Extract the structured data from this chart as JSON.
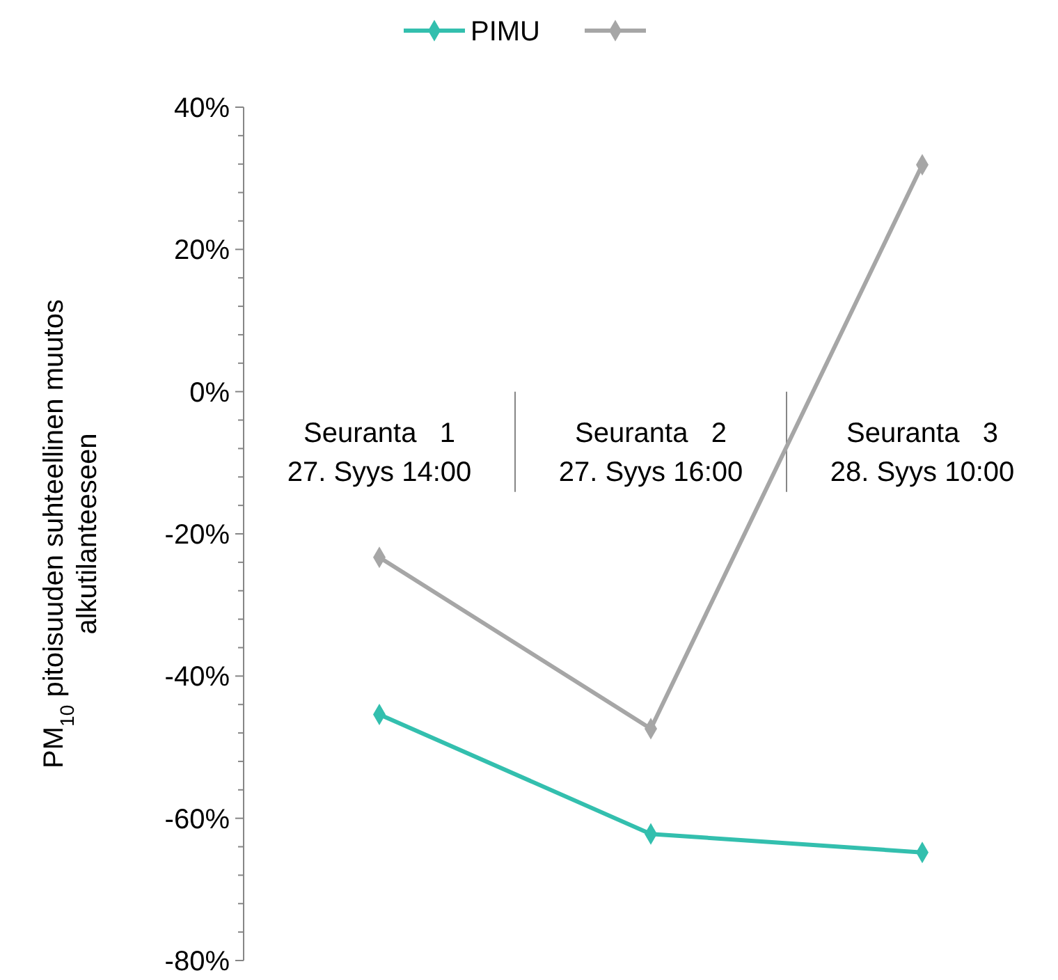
{
  "chart_data": {
    "type": "line",
    "ylabel": "PM$_{10}$ pitoisuuden suhteellinen muutos\nalkutilanteeseen",
    "categories": [
      "Seuranta   1\n27. Syys 14:00",
      "Seuranta   2\n27. Syys 16:00",
      "Seuranta   3\n28. Syys 10:00"
    ],
    "series": [
      {
        "name": "PIMU",
        "color": "#33bfae",
        "values": [
          -45.4,
          -62.2,
          -64.8
        ]
      },
      {
        "color": "#a6a6a6",
        "values": [
          -23.3,
          -47.4,
          31.9
        ]
      }
    ],
    "ylim": [
      -80,
      40
    ],
    "yticks": [
      {
        "value": -80,
        "label": "-80%"
      },
      {
        "value": -60,
        "label": "-60%"
      },
      {
        "value": -40,
        "label": "-40%"
      },
      {
        "value": -20,
        "label": "-20%"
      },
      {
        "value": 0,
        "label": "0%"
      },
      {
        "value": 20,
        "label": "20%"
      },
      {
        "value": 40,
        "label": "40%"
      }
    ],
    "grid": false,
    "legend": "top",
    "marker": "diamond",
    "line_style": "solid"
  }
}
